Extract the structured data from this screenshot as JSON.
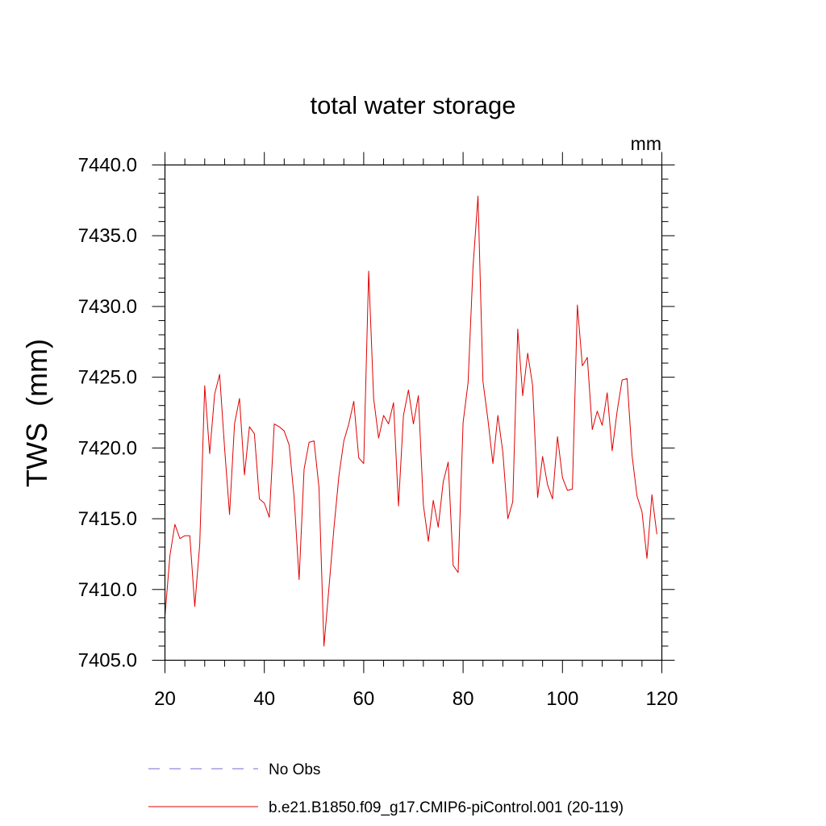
{
  "chart_data": {
    "type": "line",
    "title": "total water storage",
    "units_label": "mm",
    "ylabel": "TWS  (mm)",
    "xlabel": "",
    "xlim": [
      20,
      120
    ],
    "ylim": [
      7405.0,
      7440.0
    ],
    "x_ticks": [
      "20",
      "40",
      "60",
      "80",
      "100",
      "120"
    ],
    "y_ticks": [
      "7405.0",
      "7410.0",
      "7415.0",
      "7420.0",
      "7425.0",
      "7430.0",
      "7435.0",
      "7440.0"
    ],
    "legend": [
      {
        "name": "No Obs",
        "style": "dashed",
        "color": "#7a6ad0"
      },
      {
        "name": "b.e21.B1850.f09_g17.CMIP6-piControl.001 (20-119)",
        "style": "solid",
        "color": "#e00000"
      }
    ],
    "series": [
      {
        "name": "b.e21.B1850.f09_g17.CMIP6-piControl.001 (20-119)",
        "color": "#e00000",
        "x_start": 20,
        "x_step": 1,
        "values": [
          7408.1,
          7412.4,
          7414.6,
          7413.6,
          7413.8,
          7413.8,
          7408.8,
          7413.2,
          7424.4,
          7419.6,
          7423.8,
          7425.2,
          7420.0,
          7415.3,
          7421.7,
          7423.5,
          7418.1,
          7421.5,
          7421.0,
          7416.4,
          7416.1,
          7415.1,
          7421.7,
          7421.5,
          7421.2,
          7420.2,
          7416.5,
          7410.7,
          7418.5,
          7420.4,
          7420.5,
          7417.2,
          7406.0,
          7410.1,
          7414.3,
          7418.0,
          7420.5,
          7421.7,
          7423.3,
          7419.3,
          7418.9,
          7432.5,
          7423.5,
          7420.7,
          7422.3,
          7421.7,
          7423.2,
          7415.9,
          7422.3,
          7424.1,
          7421.7,
          7423.7,
          7416.0,
          7413.4,
          7416.3,
          7414.4,
          7417.6,
          7419.0,
          7411.7,
          7411.2,
          7421.8,
          7424.6,
          7432.8,
          7437.8,
          7424.7,
          7422.0,
          7418.9,
          7422.3,
          7419.7,
          7415.0,
          7416.2,
          7428.4,
          7423.7,
          7426.7,
          7424.4,
          7416.5,
          7419.4,
          7417.4,
          7416.4,
          7420.8,
          7417.9,
          7417.0,
          7417.1,
          7430.1,
          7425.8,
          7426.4,
          7421.3,
          7422.6,
          7421.6,
          7423.9,
          7419.8,
          7422.6,
          7424.8,
          7424.9,
          7419.5,
          7416.6,
          7415.5,
          7412.2,
          7416.7,
          7413.9
        ]
      }
    ]
  }
}
